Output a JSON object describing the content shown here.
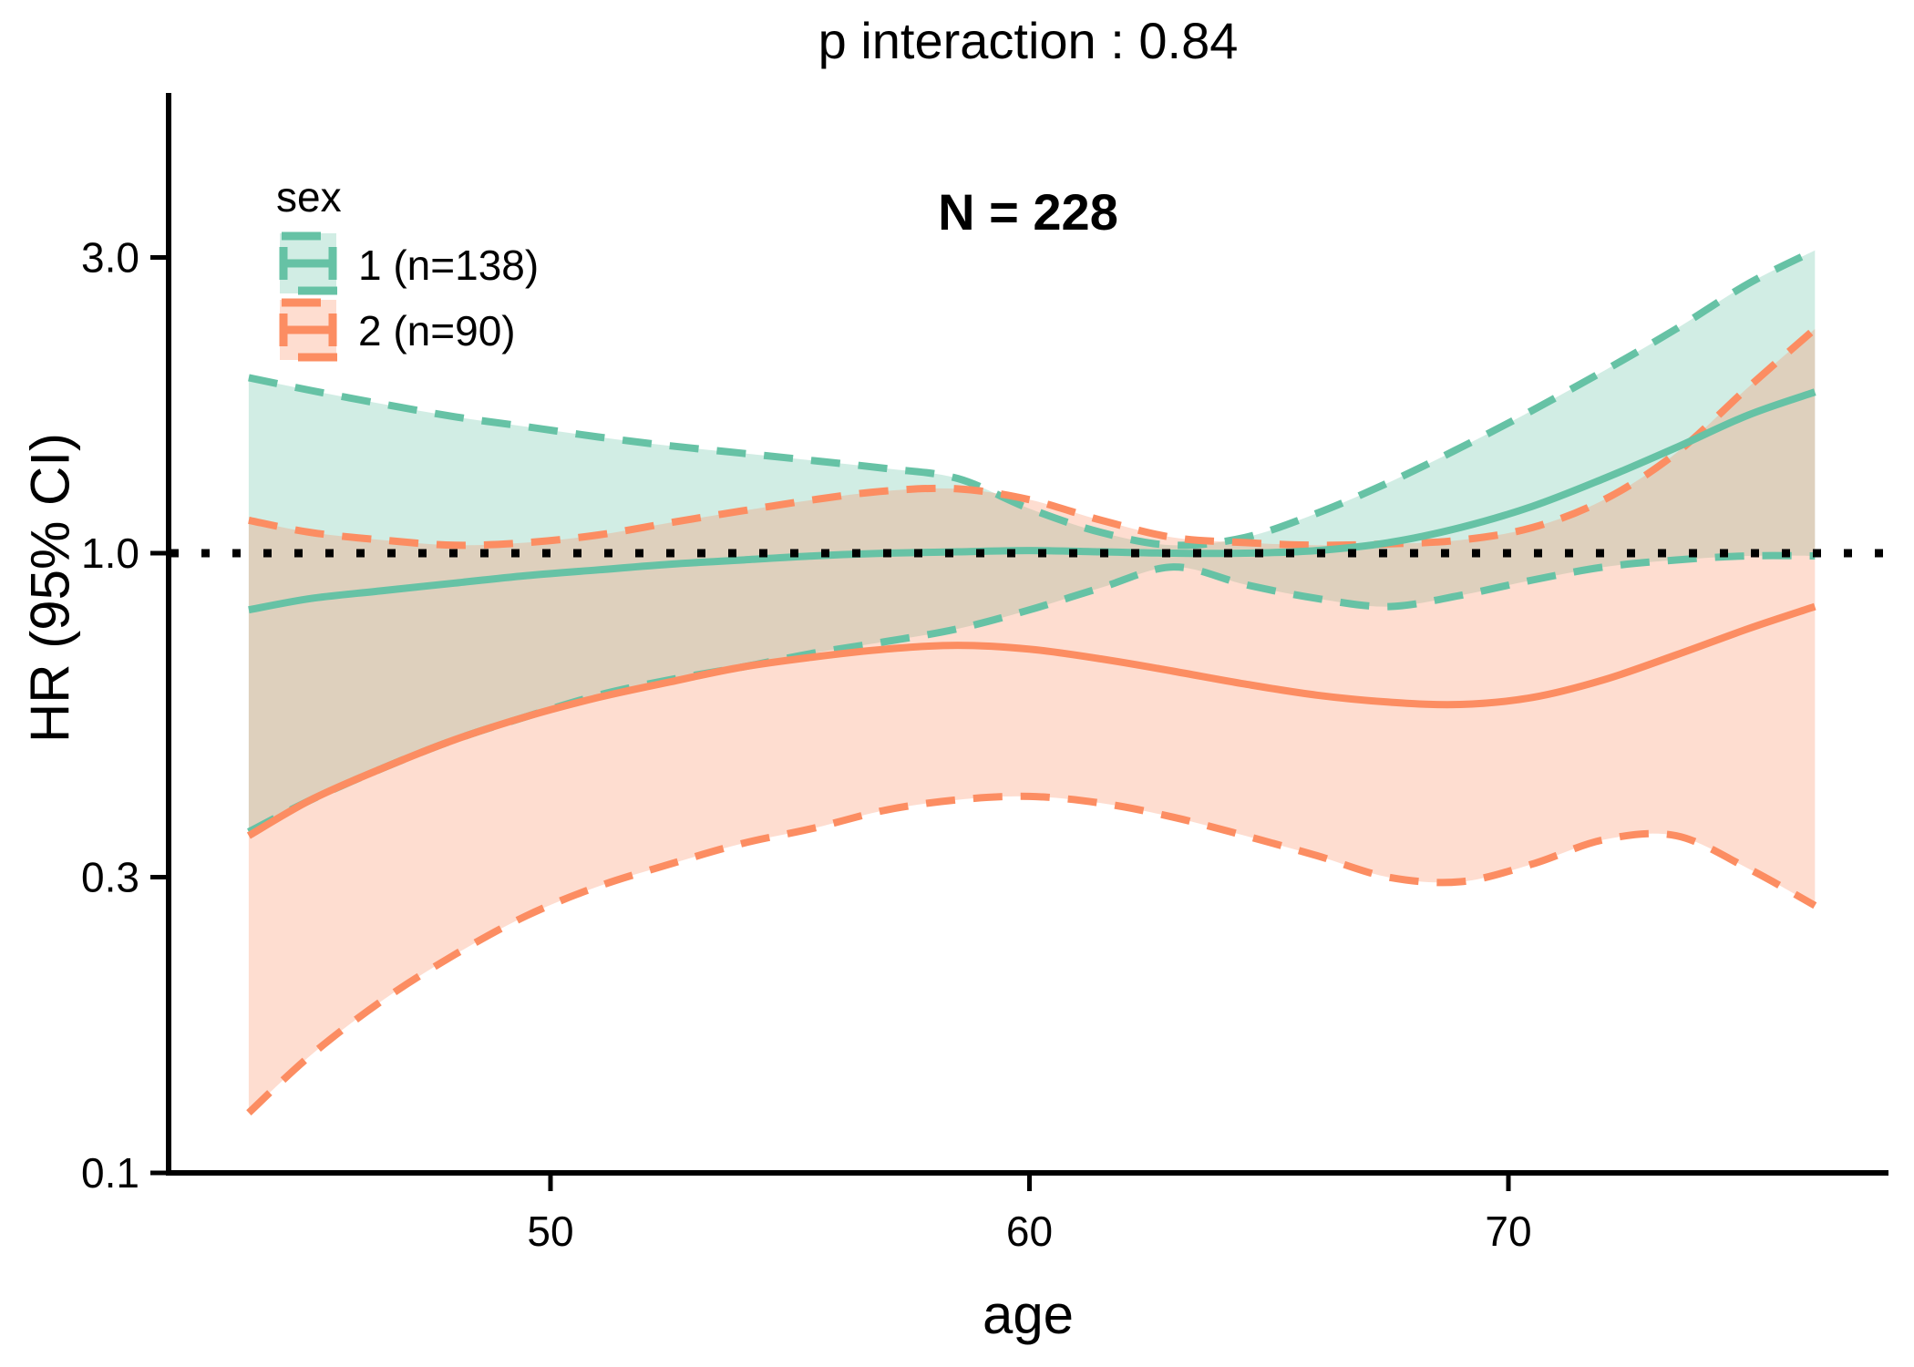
{
  "title": "p interaction : 0.84",
  "annotation": "N = 228",
  "axes": {
    "x_label": "age",
    "y_label": "HR (95% CI)",
    "x_ticks": [
      {
        "label": "50",
        "value": 50
      },
      {
        "label": "60",
        "value": 60
      },
      {
        "label": "70",
        "value": 70
      }
    ],
    "y_ticks": [
      {
        "label": "3.0",
        "value": 3.0
      },
      {
        "label": "1.0",
        "value": 1.0
      },
      {
        "label": "0.3",
        "value": 0.3
      },
      {
        "label": "0.1",
        "value": 0.1
      }
    ]
  },
  "legend": {
    "title": "sex",
    "items": [
      {
        "label": "1 (n=138)",
        "color": "#66C2A5"
      },
      {
        "label": "2 (n=90)",
        "color": "#FC8D62"
      }
    ]
  },
  "reference_line": {
    "hr": 1.0,
    "color": "#000000",
    "style": "dotted"
  },
  "chart_data": {
    "type": "line",
    "title": "p interaction : 0.84",
    "annotation": "N = 228",
    "xlabel": "age",
    "ylabel": "HR (95% CI)",
    "x_scale": "linear",
    "y_scale": "log10",
    "xlim": [
      42,
      78
    ],
    "ylim": [
      0.1,
      5.5
    ],
    "x_ticks": [
      50,
      60,
      70
    ],
    "y_ticks": [
      3.0,
      1.0,
      0.3,
      0.1
    ],
    "grid": false,
    "legend_position": "top-left-inside",
    "reference_hr": 1.0,
    "ages": [
      43.7,
      45,
      46.5,
      48,
      49.5,
      51,
      52.5,
      54,
      55.5,
      57,
      58.5,
      60,
      61.5,
      63,
      64.5,
      66,
      67.5,
      69,
      70.5,
      72,
      73.5,
      75,
      76.4
    ],
    "series": [
      {
        "name": "1 (n=138)",
        "group": "sex 1",
        "n": 138,
        "color": "#66C2A5",
        "fill_opacity": 0.3,
        "fit": [
          0.81,
          0.845,
          0.87,
          0.895,
          0.92,
          0.94,
          0.96,
          0.975,
          0.99,
          1.0,
          1.005,
          1.01,
          1.005,
          1.0,
          1.0,
          1.01,
          1.04,
          1.1,
          1.19,
          1.32,
          1.48,
          1.67,
          1.82
        ],
        "upper": [
          1.92,
          1.83,
          1.74,
          1.66,
          1.6,
          1.54,
          1.49,
          1.45,
          1.41,
          1.37,
          1.32,
          1.18,
          1.08,
          1.03,
          1.06,
          1.16,
          1.3,
          1.48,
          1.7,
          1.97,
          2.3,
          2.72,
          3.08
        ],
        "lower": [
          0.355,
          0.4,
          0.45,
          0.5,
          0.545,
          0.59,
          0.625,
          0.655,
          0.69,
          0.72,
          0.755,
          0.81,
          0.88,
          0.95,
          0.89,
          0.845,
          0.82,
          0.855,
          0.905,
          0.95,
          0.975,
          0.99,
          0.99
        ]
      },
      {
        "name": "2 (n=90)",
        "group": "sex 2",
        "n": 90,
        "color": "#FC8D62",
        "fill_opacity": 0.3,
        "fit": [
          0.35,
          0.4,
          0.45,
          0.5,
          0.545,
          0.585,
          0.62,
          0.655,
          0.68,
          0.7,
          0.71,
          0.7,
          0.675,
          0.645,
          0.615,
          0.59,
          0.575,
          0.57,
          0.585,
          0.625,
          0.685,
          0.755,
          0.82
        ],
        "upper": [
          1.13,
          1.08,
          1.05,
          1.03,
          1.04,
          1.07,
          1.12,
          1.17,
          1.22,
          1.26,
          1.27,
          1.22,
          1.13,
          1.06,
          1.04,
          1.03,
          1.035,
          1.05,
          1.1,
          1.22,
          1.45,
          1.85,
          2.3
        ],
        "lower": [
          0.125,
          0.155,
          0.19,
          0.225,
          0.26,
          0.29,
          0.315,
          0.34,
          0.36,
          0.385,
          0.4,
          0.405,
          0.395,
          0.375,
          0.35,
          0.325,
          0.3,
          0.295,
          0.315,
          0.345,
          0.35,
          0.31,
          0.27
        ]
      }
    ]
  }
}
